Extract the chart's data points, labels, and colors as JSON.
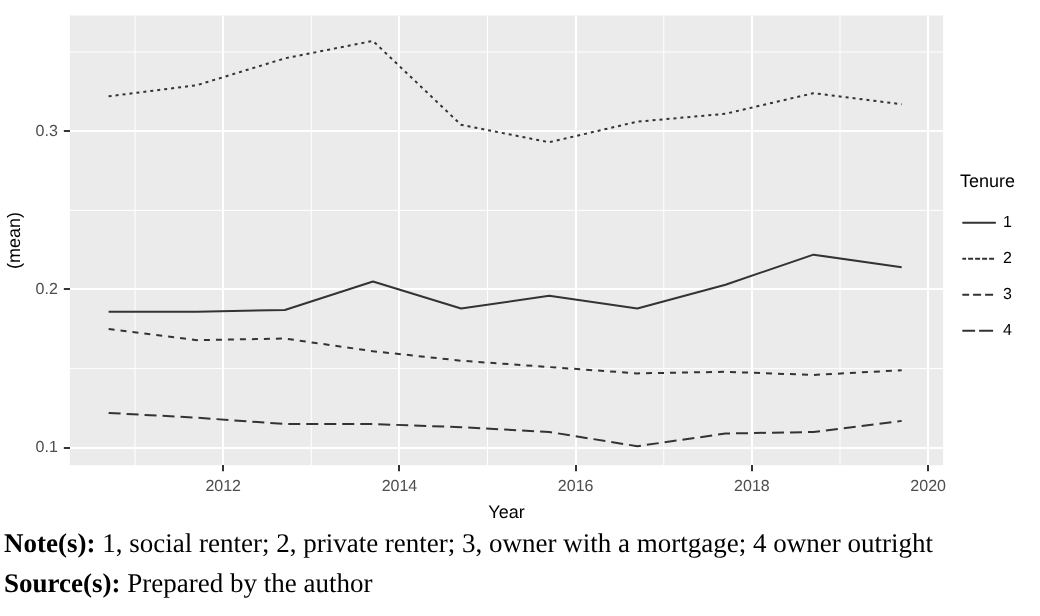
{
  "chart_data": {
    "type": "line",
    "xlabel": "Year",
    "ylabel": "(mean)",
    "legend_title": "Tenure",
    "legend": "right",
    "grid": true,
    "x": [
      2010.7,
      2011.7,
      2012.7,
      2013.7,
      2014.7,
      2015.7,
      2016.7,
      2017.7,
      2018.7,
      2019.7
    ],
    "series": [
      {
        "name": "1",
        "color": "#333333",
        "line_style": "solid",
        "values": [
          0.186,
          0.186,
          0.187,
          0.205,
          0.188,
          0.196,
          0.188,
          0.203,
          0.222,
          0.214
        ]
      },
      {
        "name": "2",
        "color": "#333333",
        "line_style": "dotted",
        "values": [
          0.322,
          0.329,
          0.346,
          0.357,
          0.304,
          0.293,
          0.306,
          0.311,
          0.324,
          0.317
        ]
      },
      {
        "name": "3",
        "color": "#333333",
        "line_style": "dashed",
        "values": [
          0.175,
          0.168,
          0.169,
          0.161,
          0.155,
          0.151,
          0.147,
          0.148,
          0.146,
          0.149
        ]
      },
      {
        "name": "4",
        "color": "#333333",
        "line_style": "longdash",
        "values": [
          0.122,
          0.119,
          0.115,
          0.115,
          0.113,
          0.11,
          0.101,
          0.109,
          0.11,
          0.117
        ]
      }
    ],
    "xlim": [
      2010.26,
      2020.17
    ],
    "xticks": [
      2012,
      2014,
      2016,
      2018,
      2020
    ],
    "ylim": [
      0.089,
      0.373
    ],
    "yticks": [
      0.1,
      0.2,
      0.3
    ],
    "annotations": [
      "Note(s): 1, social renter; 2, private renter; 3, owner with a mortgage; 4 owner outright",
      "Source(s): Prepared by the author"
    ]
  }
}
